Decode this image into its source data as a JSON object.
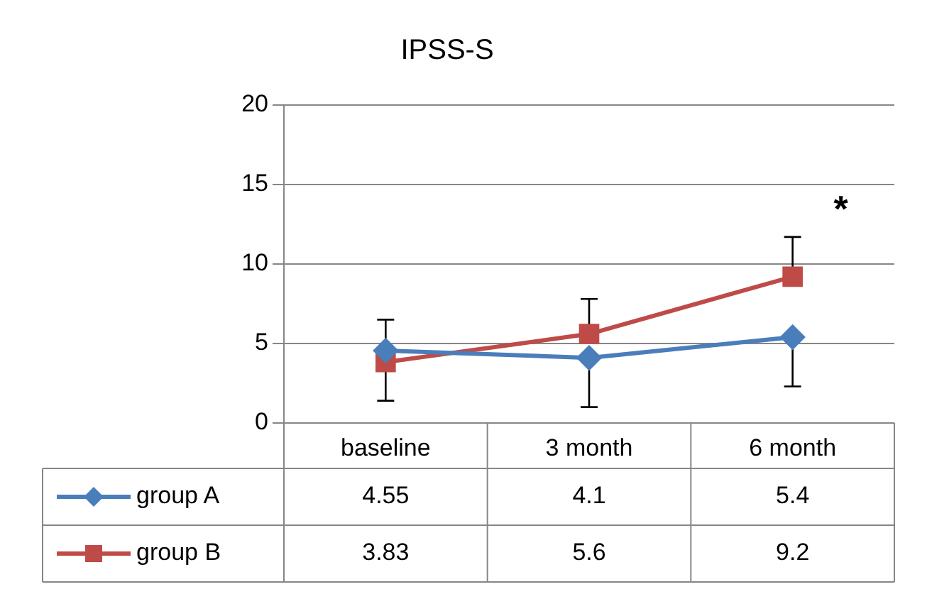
{
  "chart_data": {
    "type": "line",
    "title": "IPSS-S",
    "categories": [
      "baseline",
      "3 month",
      "6 month"
    ],
    "series": [
      {
        "name": "group A",
        "color": "#4a7ebb",
        "marker": "diamond",
        "values": [
          4.55,
          4.1,
          5.4
        ],
        "errors": [
          [
            1.4,
            4.55
          ],
          [
            1.0,
            4.1
          ],
          [
            2.3,
            5.4
          ]
        ]
      },
      {
        "name": "group B",
        "color": "#be4b48",
        "marker": "square",
        "values": [
          3.83,
          5.6,
          9.2
        ],
        "errors": [
          [
            3.83,
            6.5
          ],
          [
            5.6,
            7.8
          ],
          [
            9.2,
            11.7
          ]
        ]
      }
    ],
    "ylim": [
      0,
      20
    ],
    "yticks": [
      0,
      5,
      10,
      15,
      20
    ],
    "grid": "y",
    "legend": "bottom left",
    "data_labels": true,
    "annotations": [
      "*"
    ]
  }
}
